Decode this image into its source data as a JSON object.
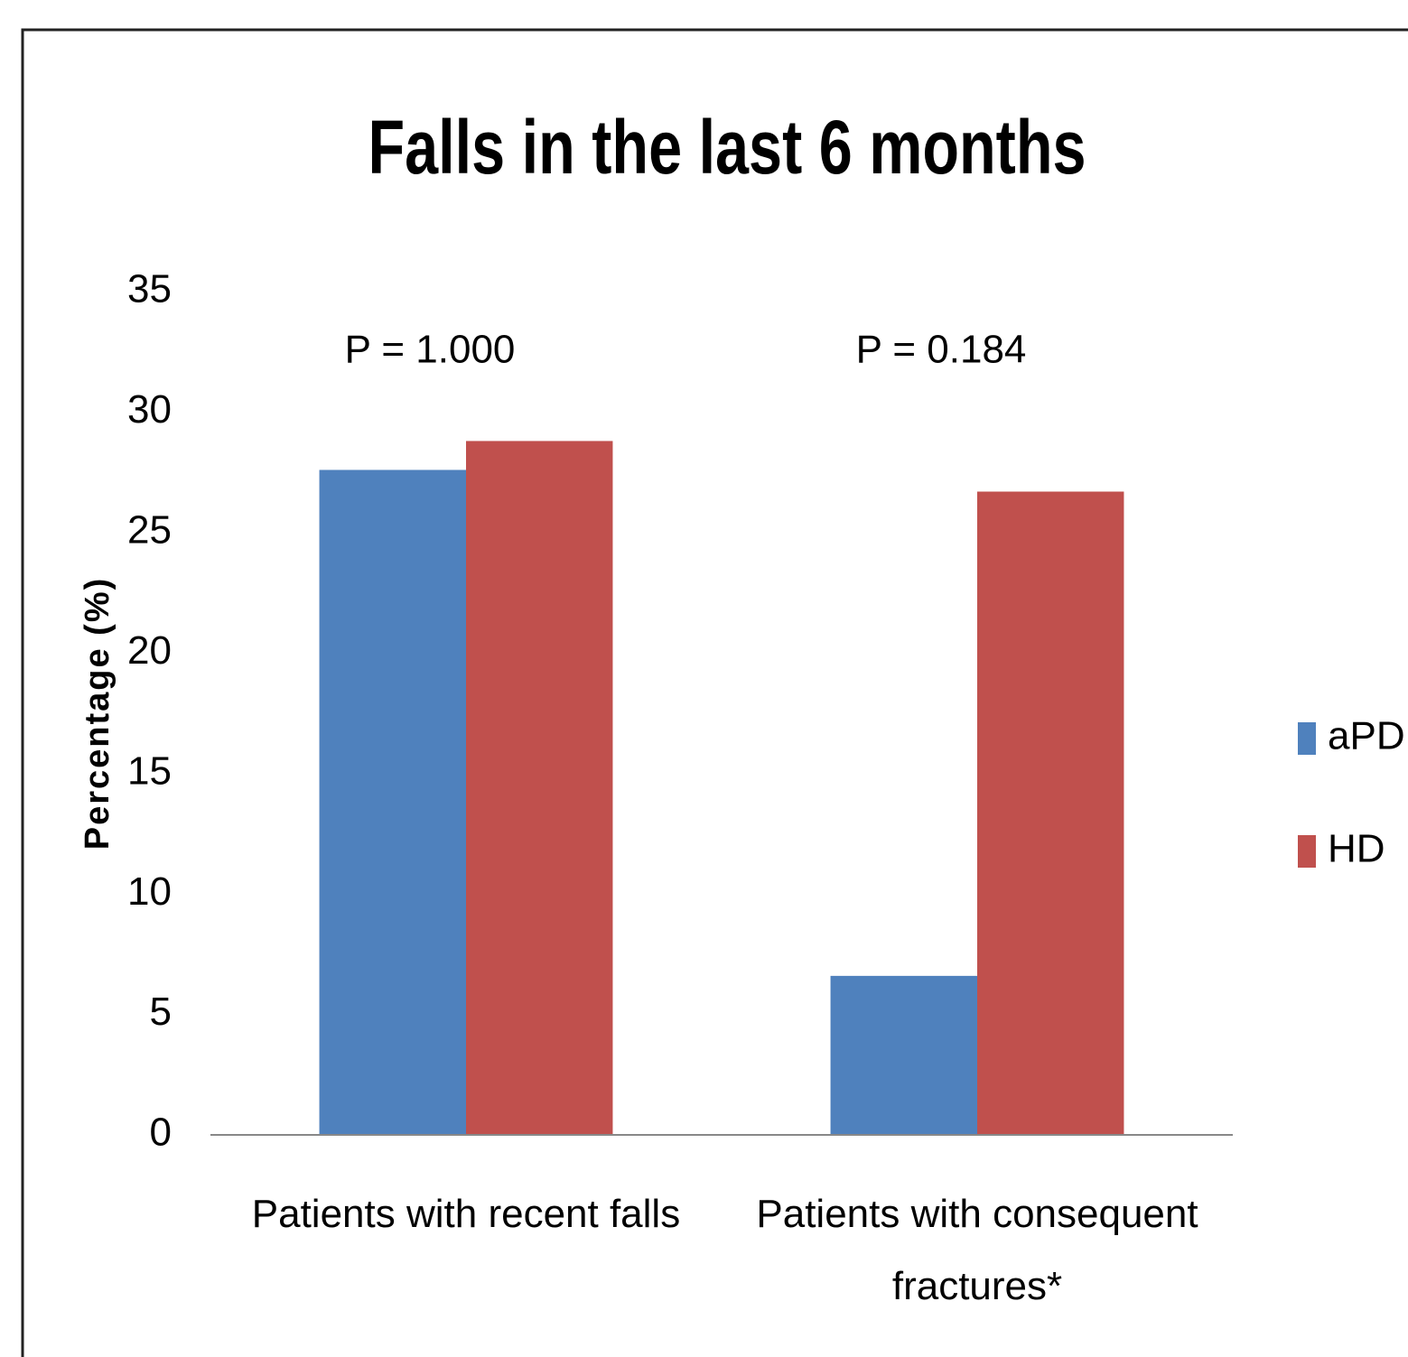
{
  "chart_data": {
    "type": "bar",
    "title": "Falls in the last 6 months",
    "y_label": "Percentage (%)",
    "categories": [
      "Patients with recent falls",
      "Patients with consequent fractures*"
    ],
    "series": [
      {
        "name": "aPD",
        "color": "#4f81bd",
        "values": [
          27.6,
          6.6
        ]
      },
      {
        "name": "HD",
        "color": "#c0504d",
        "values": [
          28.8,
          26.7
        ]
      }
    ],
    "annotations": [
      "P =  1.000",
      "P =  0.184"
    ],
    "ylim": [
      0,
      35
    ],
    "yticks": [
      0,
      5,
      10,
      15,
      20,
      25,
      30,
      35
    ],
    "grid": false,
    "legend": "right"
  }
}
